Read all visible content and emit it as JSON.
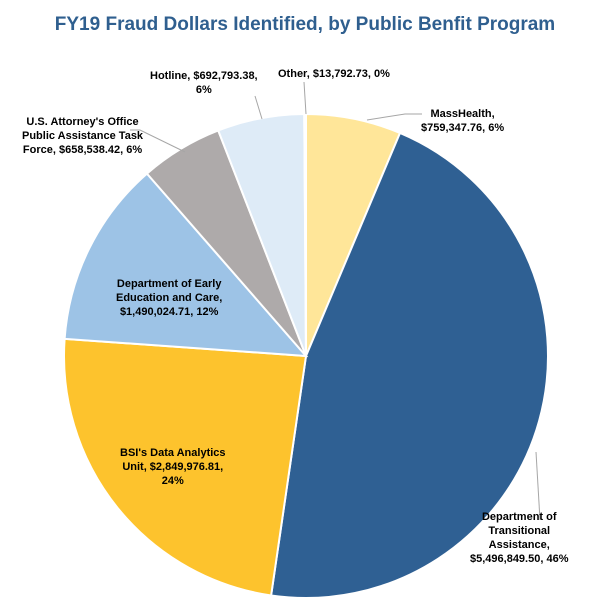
{
  "chart_data": {
    "type": "pie",
    "title": "FY19 Fraud Dollars Identified, by Public Benfit Program",
    "slices": [
      {
        "name": "MassHealth",
        "value": 759347.76,
        "label_lines": [
          "MassHealth,",
          "$759,347.76, 6%"
        ],
        "color": "#ffe699"
      },
      {
        "name": "Department of Transitional Assistance",
        "value": 5496849.5,
        "label_lines": [
          "Department of",
          "Transitional",
          "Assistance,",
          "$5,496,849.50, 46%"
        ],
        "color": "#2f6093"
      },
      {
        "name": "BSI's Data Analytics Unit",
        "value": 2849976.81,
        "label_lines": [
          "BSI's Data Analytics",
          "Unit, $2,849,976.81,",
          "24%"
        ],
        "color": "#fdc32d"
      },
      {
        "name": "Department of Early Education and Care",
        "value": 1490024.71,
        "label_lines": [
          "Department of Early",
          "Education and Care,",
          "$1,490,024.71, 12%"
        ],
        "color": "#9dc3e6"
      },
      {
        "name": "U.S. Attorney's Office Public Assistance Task Force",
        "value": 658538.42,
        "label_lines": [
          "U.S. Attorney's Office",
          "Public Assistance Task",
          "Force, $658,538.42, 6%"
        ],
        "color": "#aeaaaa"
      },
      {
        "name": "Hotline",
        "value": 692793.38,
        "label_lines": [
          "Hotline, $692,793.38,",
          "6%"
        ],
        "color": "#deebf7"
      },
      {
        "name": "Other",
        "value": 13792.73,
        "label_lines": [
          "Other, $13,792.73, 0%"
        ],
        "color": "#fff2cc"
      }
    ],
    "start_angle_deg": 0,
    "direction": "clockwise",
    "title_color": "#2f5f8f",
    "legend": "none"
  }
}
